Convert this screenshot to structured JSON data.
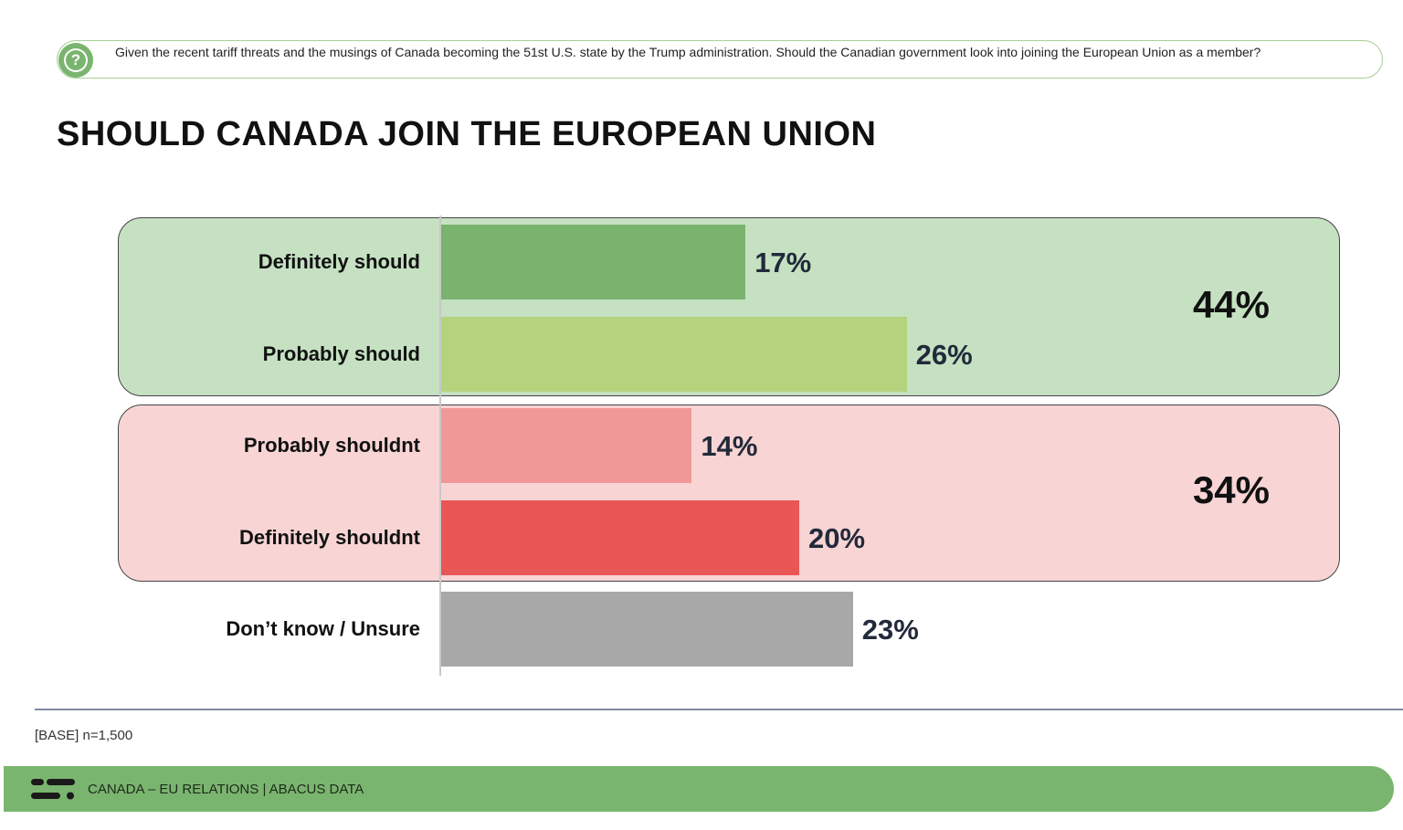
{
  "question": {
    "icon": "question-mark-icon",
    "text": "Given the recent tariff threats and the musings of Canada becoming the 51st U.S. state by the Trump administration. Should the Canadian government look into joining the European Union as a member?"
  },
  "chart_data": {
    "type": "bar",
    "orientation": "horizontal",
    "title": "SHOULD CANADA JOIN THE EUROPEAN UNION",
    "xlabel": "",
    "ylabel": "",
    "xlim": [
      0,
      100
    ],
    "grid": false,
    "categories": [
      "Definitely should",
      "Probably should",
      "Probably shouldnt",
      "Definitely shouldnt",
      "Don’t know / Unsure"
    ],
    "values": [
      17,
      26,
      14,
      20,
      23
    ],
    "value_labels": [
      "17%",
      "26%",
      "14%",
      "20%",
      "23%"
    ],
    "bar_colors": [
      "#79b36e",
      "#b5d27d",
      "#f09898",
      "#e95656",
      "#a8a8a8"
    ],
    "groups": [
      {
        "members": [
          "Definitely should",
          "Probably should"
        ],
        "total": 44,
        "total_label": "44%",
        "color": "#c5e1c2"
      },
      {
        "members": [
          "Probably shouldnt",
          "Definitely shouldnt"
        ],
        "total": 34,
        "total_label": "34%",
        "color": "#f8d4d4"
      }
    ]
  },
  "base_note": "[BASE] n=1,500",
  "footer": {
    "logo_icon": "abacus-logo-icon",
    "text": "CANADA – EU RELATIONS  |  ABACUS DATA",
    "color": "#7ab56f"
  }
}
